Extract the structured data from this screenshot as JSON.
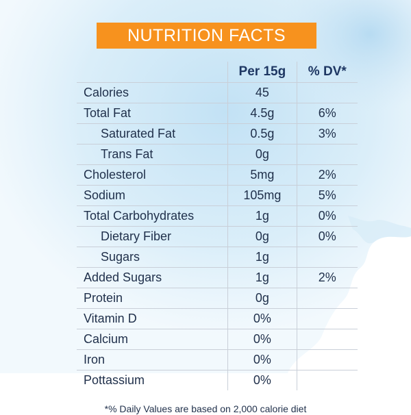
{
  "title": "NUTRITION FACTS",
  "headers": {
    "nutrient": "",
    "per": "Per 15g",
    "dv": "% DV*"
  },
  "rows": [
    {
      "name": "Calories",
      "value": "45",
      "dv": "",
      "sub": false
    },
    {
      "name": "Total Fat",
      "value": "4.5g",
      "dv": "6%",
      "sub": false
    },
    {
      "name": "Saturated Fat",
      "value": "0.5g",
      "dv": "3%",
      "sub": true
    },
    {
      "name": "Trans Fat",
      "value": "0g",
      "dv": "",
      "sub": true
    },
    {
      "name": "Cholesterol",
      "value": "5mg",
      "dv": "2%",
      "sub": false
    },
    {
      "name": "Sodium",
      "value": "105mg",
      "dv": "5%",
      "sub": false
    },
    {
      "name": "Total Carbohydrates",
      "value": "1g",
      "dv": "0%",
      "sub": false
    },
    {
      "name": "Dietary Fiber",
      "value": "0g",
      "dv": "0%",
      "sub": true
    },
    {
      "name": "Sugars",
      "value": "1g",
      "dv": "",
      "sub": true
    },
    {
      "name": "Added Sugars",
      "value": "1g",
      "dv": "2%",
      "sub": false
    },
    {
      "name": "Protein",
      "value": "0g",
      "dv": "",
      "sub": false
    },
    {
      "name": "Vitamin D",
      "value": "0%",
      "dv": "",
      "sub": false
    },
    {
      "name": "Calcium",
      "value": "0%",
      "dv": "",
      "sub": false
    },
    {
      "name": "Iron",
      "value": "0%",
      "dv": "",
      "sub": false
    },
    {
      "name": "Pottassium",
      "value": "0%",
      "dv": "",
      "sub": false
    }
  ],
  "footnote": "*% Daily Values are based on 2,000 calorie diet",
  "colors": {
    "banner": "#f7921e",
    "wash": "#cfe6f5",
    "text": "#1f2f4a"
  }
}
